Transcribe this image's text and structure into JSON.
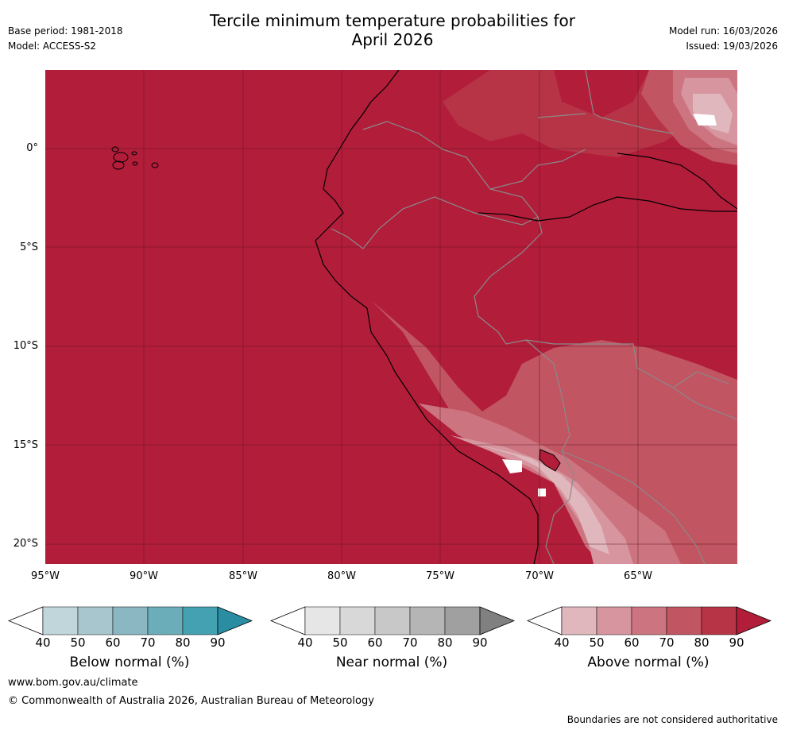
{
  "header": {
    "title_line1": "Tercile minimum temperature probabilities for",
    "title_line2": "April 2026",
    "base_period": "Base period: 1981-2018",
    "model": "Model: ACCESS-S2",
    "model_run": "Model run: 16/03/2026",
    "issued": "Issued: 19/03/2026"
  },
  "map": {
    "region": "Western South America / Eastern Pacific",
    "lon_range": [
      -95,
      -60
    ],
    "lat_range": [
      -21,
      4
    ],
    "lat_ticks": [
      "0°",
      "5°S",
      "10°S",
      "15°S",
      "20°S"
    ],
    "lon_ticks": [
      "95°W",
      "90°W",
      "85°W",
      "80°W",
      "75°W",
      "70°W",
      "65°W"
    ],
    "dominant_category": "Above normal",
    "dominant_level": "80-90%",
    "colors": {
      "ocean_fill": "#b21d3a",
      "gridline": "#5a1520",
      "coastline": "#000000",
      "country_border": "#8a8a8a"
    }
  },
  "colorbars": [
    {
      "id": "below",
      "label": "Below normal (%)",
      "ticks": [
        "40",
        "50",
        "60",
        "70",
        "80",
        "90"
      ],
      "colors": [
        "#ffffff",
        "#c0d6db",
        "#a7c6cd",
        "#8ab7c2",
        "#6badb9",
        "#44a1b2",
        "#2a8da2"
      ]
    },
    {
      "id": "near",
      "label": "Near normal (%)",
      "ticks": [
        "40",
        "50",
        "60",
        "70",
        "80",
        "90"
      ],
      "colors": [
        "#ffffff",
        "#e6e6e6",
        "#d8d8d8",
        "#c8c8c8",
        "#b5b5b5",
        "#a0a0a0",
        "#808080"
      ]
    },
    {
      "id": "above",
      "label": "Above normal (%)",
      "ticks": [
        "40",
        "50",
        "60",
        "70",
        "80",
        "90"
      ],
      "colors": [
        "#ffffff",
        "#e0b7bd",
        "#d6959f",
        "#cc7580",
        "#c15562",
        "#b73447",
        "#b21d3a"
      ]
    }
  ],
  "footer": {
    "url": "www.bom.gov.au/climate",
    "copyright": "© Commonwealth of Australia 2026, Australian Bureau of Meteorology",
    "note": "Boundaries are not considered authoritative"
  }
}
